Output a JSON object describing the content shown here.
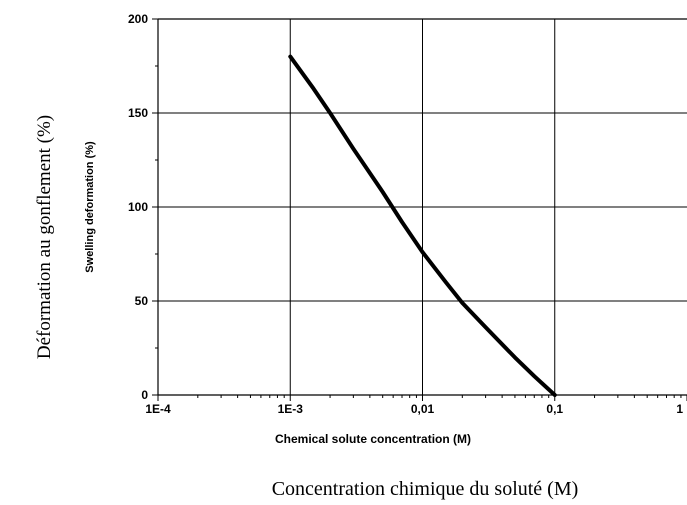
{
  "outer_labels": {
    "y": "Déformation au gonflement (%)",
    "x": "Concentration chimique du soluté (M)"
  },
  "chart_data": {
    "type": "line",
    "xlabel": "Chemical solute concentration (M)",
    "ylabel": "Swelling deformation (%)",
    "x_scale": "log",
    "xlim": [
      0.0001,
      1
    ],
    "ylim": [
      0,
      200
    ],
    "grid": true,
    "x_ticks": [
      {
        "value": 0.0001,
        "label": "1E-4"
      },
      {
        "value": 0.001,
        "label": "1E-3"
      },
      {
        "value": 0.01,
        "label": "0,01"
      },
      {
        "value": 0.1,
        "label": "0,1"
      },
      {
        "value": 1,
        "label": "1"
      }
    ],
    "y_ticks": [
      {
        "value": 0,
        "label": "0"
      },
      {
        "value": 50,
        "label": "50"
      },
      {
        "value": 100,
        "label": "100"
      },
      {
        "value": 150,
        "label": "150"
      },
      {
        "value": 200,
        "label": "200"
      }
    ],
    "series": [
      {
        "color": "#000000",
        "x": [
          0.001,
          0.0015,
          0.002,
          0.003,
          0.005,
          0.007,
          0.01,
          0.015,
          0.02,
          0.03,
          0.05,
          0.07,
          0.1
        ],
        "y": [
          180,
          163,
          150,
          131,
          108,
          92,
          76,
          60,
          49,
          36,
          20,
          10,
          0
        ]
      }
    ]
  }
}
